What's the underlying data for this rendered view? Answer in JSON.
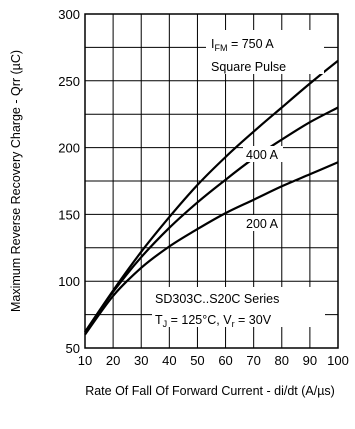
{
  "chart_data": {
    "type": "line",
    "xlabel": "Rate Of Fall Of Forward Current - di/dt (A/µs)",
    "ylabel": "Maximum Reverse Recovery Charge - Qrr (µC)",
    "xlim": [
      10,
      100
    ],
    "ylim": [
      50,
      300
    ],
    "xticks": [
      "10",
      "20",
      "30",
      "40",
      "50",
      "60",
      "70",
      "80",
      "90",
      "100"
    ],
    "yticks": [
      "50",
      "100",
      "150",
      "200",
      "250",
      "300"
    ],
    "grid": true,
    "series": [
      {
        "name": "IFM = 750 A",
        "x": [
          10,
          20,
          30,
          40,
          50,
          60,
          70,
          80,
          90,
          100
        ],
        "y": [
          62,
          93,
          122,
          148,
          172,
          193,
          212,
          230,
          248,
          265
        ]
      },
      {
        "name": "400 A",
        "x": [
          10,
          20,
          30,
          40,
          50,
          60,
          70,
          80,
          90,
          100
        ],
        "y": [
          62,
          92,
          118,
          140,
          159,
          176,
          192,
          206,
          219,
          230
        ]
      },
      {
        "name": "200 A",
        "x": [
          10,
          20,
          30,
          40,
          50,
          60,
          70,
          80,
          90,
          100
        ],
        "y": [
          60,
          89,
          110,
          126,
          139,
          151,
          161,
          171,
          180,
          189
        ]
      }
    ],
    "annotations": {
      "ifm_prefix": "I",
      "ifm_sub": "FM",
      "ifm_value": " = 750 A",
      "pulse": "Square Pulse",
      "label_400": "400 A",
      "label_200": "200 A",
      "series_name": "SD303C..S20C Series",
      "tj_prefix": "T",
      "tj_sub": "J",
      "tj_value": " = 125°C, V",
      "vr_sub": "r",
      "vr_value": " = 30V"
    }
  }
}
